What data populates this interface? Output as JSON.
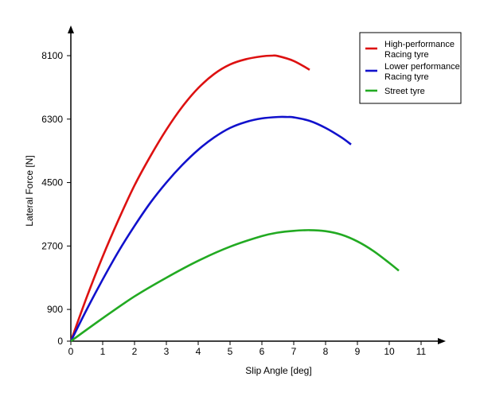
{
  "chart_data": {
    "type": "line",
    "title": "",
    "xlabel": "Slip Angle [deg]",
    "ylabel": "Lateral Force [N]",
    "xlim": [
      0,
      11
    ],
    "ylim": [
      0,
      8100
    ],
    "xticks": [
      0,
      1,
      2,
      3,
      4,
      5,
      6,
      7,
      8,
      9,
      10,
      11
    ],
    "yticks": [
      0,
      900,
      2700,
      4500,
      6300,
      8100
    ],
    "grid": false,
    "legend_position": "top-right",
    "series": [
      {
        "name": "High-performance Racing tyre",
        "color": "#dd1111",
        "x": [
          0,
          0.5,
          1,
          1.5,
          2,
          2.5,
          3,
          3.5,
          4,
          4.5,
          5,
          5.5,
          6,
          6.3,
          6.5,
          7,
          7.5
        ],
        "y": [
          0,
          1250,
          2400,
          3450,
          4420,
          5250,
          6000,
          6650,
          7180,
          7580,
          7850,
          8000,
          8080,
          8100,
          8090,
          7950,
          7700
        ]
      },
      {
        "name": "Lower performance Racing tyre",
        "color": "#1111cc",
        "x": [
          0,
          0.5,
          1,
          1.5,
          2,
          2.5,
          3,
          3.5,
          4,
          4.5,
          5,
          5.5,
          6,
          6.5,
          6.8,
          7,
          7.5,
          8,
          8.5,
          8.8
        ],
        "y": [
          0,
          900,
          1750,
          2550,
          3270,
          3930,
          4500,
          5000,
          5430,
          5780,
          6050,
          6220,
          6320,
          6360,
          6360,
          6350,
          6250,
          6050,
          5780,
          5580
        ]
      },
      {
        "name": "Street tyre",
        "color": "#22aa22",
        "x": [
          0,
          1,
          2,
          3,
          4,
          5,
          6,
          6.5,
          7,
          7.5,
          8,
          8.5,
          9,
          9.5,
          10,
          10.3
        ],
        "y": [
          0,
          650,
          1270,
          1800,
          2280,
          2680,
          2980,
          3080,
          3130,
          3150,
          3120,
          3020,
          2830,
          2560,
          2220,
          2000
        ]
      }
    ]
  }
}
